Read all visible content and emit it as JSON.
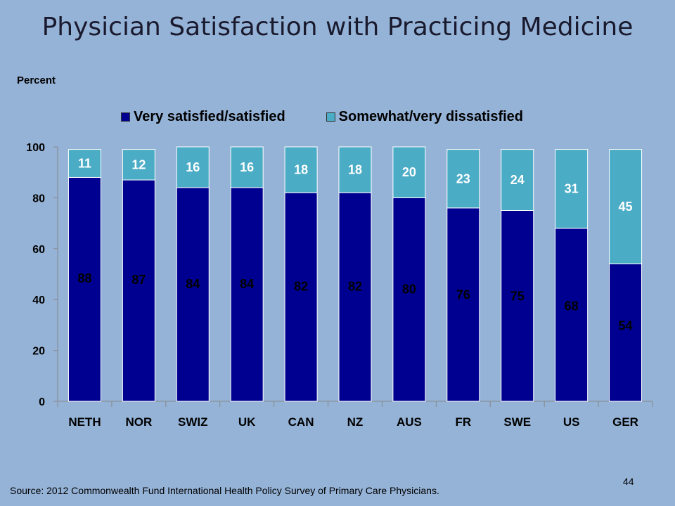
{
  "slide": {
    "title": "Physician Satisfaction with Practicing Medicine",
    "source": "Source: 2012 Commonwealth Fund International Health Policy Survey of Primary Care Physicians.",
    "page_number": "44"
  },
  "colors": {
    "background": "#95b3d7",
    "satisfied": "#000090",
    "dissatisfied": "#4bacc6"
  },
  "chart_data": {
    "type": "bar",
    "stacked": true,
    "ylabel": "Percent",
    "ylim": [
      0,
      100
    ],
    "yticks": [
      0,
      20,
      40,
      60,
      80,
      100
    ],
    "legend_position": "top",
    "categories": [
      "NETH",
      "NOR",
      "SWIZ",
      "UK",
      "CAN",
      "NZ",
      "AUS",
      "FR",
      "SWE",
      "US",
      "GER"
    ],
    "series": [
      {
        "name": "Very satisfied/satisfied",
        "values": [
          88,
          87,
          84,
          84,
          82,
          82,
          80,
          76,
          75,
          68,
          54
        ]
      },
      {
        "name": "Somewhat/very dissatisfied",
        "values": [
          11,
          12,
          16,
          16,
          18,
          18,
          20,
          23,
          24,
          31,
          45
        ]
      }
    ]
  }
}
